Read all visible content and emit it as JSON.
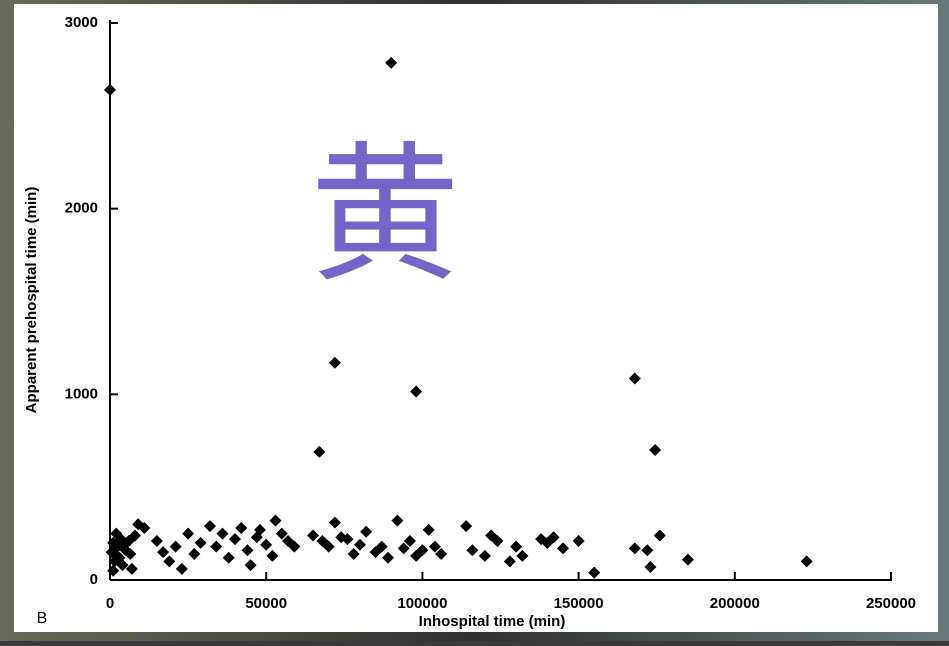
{
  "chart_data": {
    "type": "scatter",
    "xlabel": "Inhospital time (min)",
    "ylabel": "Apparent prehospital time (min)",
    "panel_label": "B",
    "watermark": "黄",
    "color": "#000000",
    "xlim": [
      0,
      250000
    ],
    "xticks": [
      0,
      50000,
      100000,
      150000,
      200000,
      250000
    ],
    "ylim": [
      0,
      3000
    ],
    "yticks": [
      0,
      1000,
      2000,
      3000
    ],
    "x": [
      0,
      90000,
      67000,
      72000,
      98000,
      168000,
      174500,
      500,
      1000,
      1500,
      2000,
      2500,
      3000,
      3500,
      4000,
      5000,
      6000,
      7000,
      8000,
      9000,
      11000,
      1000,
      2000,
      4500,
      6500,
      15000,
      17000,
      19000,
      21000,
      23000,
      25000,
      27000,
      29000,
      32000,
      34000,
      36000,
      38000,
      40000,
      42000,
      44000,
      45000,
      47000,
      48000,
      50000,
      52000,
      53000,
      55000,
      57000,
      59000,
      65000,
      68000,
      70000,
      72000,
      74000,
      76000,
      78000,
      80000,
      82000,
      85000,
      87000,
      89000,
      92000,
      94000,
      96000,
      98000,
      100000,
      102000,
      104000,
      106000,
      114000,
      116000,
      120000,
      122000,
      124000,
      128000,
      130000,
      132000,
      138000,
      140000,
      142000,
      145000,
      150000,
      155000,
      168000,
      172000,
      173000,
      176000,
      185000,
      223000
    ],
    "values": [
      2640,
      2785,
      690,
      1170,
      1015,
      1085,
      700,
      150,
      200,
      100,
      250,
      180,
      120,
      220,
      80,
      160,
      210,
      60,
      240,
      300,
      280,
      50,
      130,
      190,
      140,
      210,
      150,
      100,
      180,
      60,
      250,
      140,
      200,
      290,
      180,
      250,
      120,
      220,
      280,
      160,
      80,
      230,
      270,
      190,
      130,
      320,
      250,
      210,
      180,
      240,
      210,
      180,
      310,
      230,
      220,
      140,
      190,
      260,
      150,
      180,
      120,
      320,
      170,
      210,
      130,
      160,
      270,
      180,
      140,
      290,
      160,
      130,
      240,
      210,
      100,
      180,
      130,
      220,
      200,
      230,
      170,
      210,
      40,
      170,
      160,
      70,
      240,
      110,
      100
    ]
  }
}
